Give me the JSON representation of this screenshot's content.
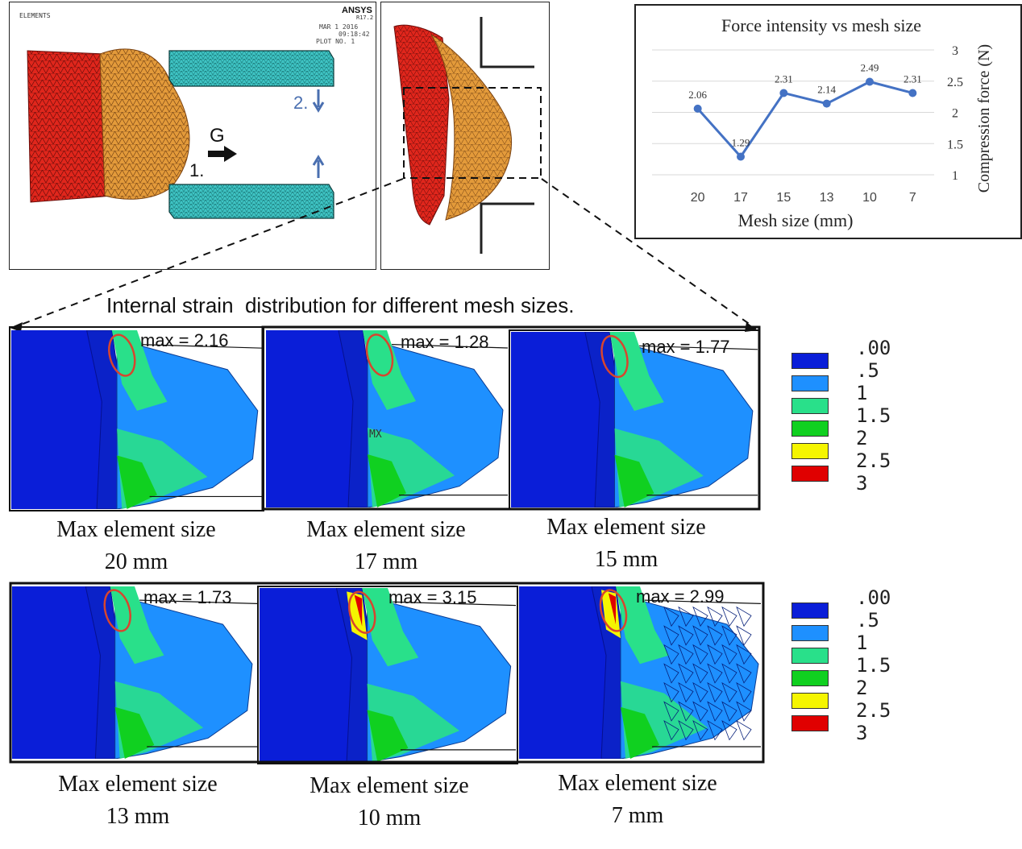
{
  "ansys_panel": {
    "small_label": "ELEMENTS",
    "brand": "ANSYS",
    "version": "R17.2",
    "date": "MAR  1 2016",
    "time": "09:18:42",
    "plot": "PLOT NO.   1",
    "label_1": "1.",
    "label_2": "2.",
    "label_g": "G"
  },
  "chart_data": {
    "type": "line",
    "title": "Force intensity vs mesh size",
    "xlabel": "Mesh size (mm)",
    "ylabel": "Compression force (N)",
    "categories": [
      "20",
      "17",
      "15",
      "13",
      "10",
      "7"
    ],
    "values": [
      2.06,
      1.29,
      2.31,
      2.14,
      2.49,
      2.31
    ],
    "data_labels": [
      "2.06",
      "1.29",
      "2.31",
      "2.14",
      "2.49",
      "2.31"
    ],
    "yticks": [
      "1",
      "1.5",
      "2",
      "2.5",
      "3"
    ],
    "ylim": [
      1,
      3
    ],
    "y_axis_side": "right",
    "grid": true,
    "color": "#4472c4"
  },
  "strain_title": "Internal strain  distribution for different mesh sizes.",
  "panels": [
    {
      "max": "max = 2.16",
      "caption_line1": "Max element size",
      "caption_line2": "20 mm"
    },
    {
      "max": "max = 1.28",
      "caption_line1": "Max element size",
      "caption_line2": "17 mm"
    },
    {
      "max": "max = 1.77",
      "caption_line1": "Max element size",
      "caption_line2": "15 mm"
    },
    {
      "max": "max = 1.73",
      "caption_line1": "Max element size",
      "caption_line2": "13 mm"
    },
    {
      "max": "max = 3.15",
      "caption_line1": "Max element size",
      "caption_line2": "10 mm"
    },
    {
      "max": "max = 2.99",
      "caption_line1": "Max element size",
      "caption_line2": "7 mm"
    }
  ],
  "mx_label": "MX",
  "legend": {
    "labels": [
      ".00",
      ".5",
      "1",
      "1.5",
      "2",
      "2.5",
      "3"
    ],
    "colors": [
      "#0a1ed8",
      "#1e90ff",
      "#29e08a",
      "#10d020",
      "#f5f500",
      "#e00000"
    ]
  }
}
